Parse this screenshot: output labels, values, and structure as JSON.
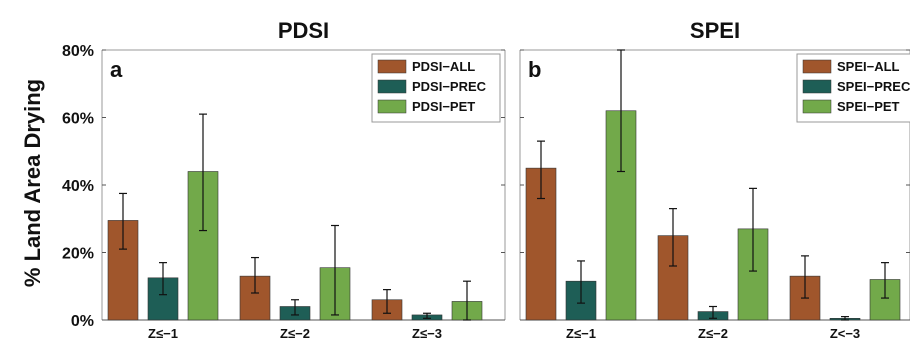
{
  "colors": {
    "all": "#a0562c",
    "prec": "#1e5e56",
    "pet": "#72a94a"
  },
  "chart_data": [
    {
      "type": "bar",
      "panel": "a",
      "title": "PDSI",
      "ylabel": "% Land Area Drying",
      "ylim": [
        0,
        80
      ],
      "yticks": [
        "0%",
        "20%",
        "40%",
        "60%",
        "80%"
      ],
      "categories": [
        "Z≤−1",
        "Z≤−2",
        "Z≤−3"
      ],
      "legend_position": "top-right",
      "series": [
        {
          "name": "PDSI−ALL",
          "color_key": "all",
          "values": [
            29.5,
            13,
            6
          ],
          "err_low": [
            21,
            8,
            2
          ],
          "err_high": [
            37.5,
            18.5,
            9
          ]
        },
        {
          "name": "PDSI−PREC",
          "color_key": "prec",
          "values": [
            12.5,
            4,
            1.5
          ],
          "err_low": [
            7.5,
            1.5,
            0.5
          ],
          "err_high": [
            17,
            6,
            2
          ]
        },
        {
          "name": "PDSI−PET",
          "color_key": "pet",
          "values": [
            44,
            15.5,
            5.5
          ],
          "err_low": [
            26.5,
            1.5,
            0
          ],
          "err_high": [
            61,
            28,
            11.5
          ]
        }
      ]
    },
    {
      "type": "bar",
      "panel": "b",
      "title": "SPEI",
      "ylabel": "",
      "ylim": [
        0,
        80
      ],
      "yticks": [],
      "categories": [
        "Z≤−1",
        "Z≤−2",
        "Z<−3"
      ],
      "legend_position": "top-right",
      "series": [
        {
          "name": "SPEI−ALL",
          "color_key": "all",
          "values": [
            45,
            25,
            13
          ],
          "err_low": [
            36,
            16,
            6.5
          ],
          "err_high": [
            53,
            33,
            19
          ]
        },
        {
          "name": "SPEI−PREC",
          "color_key": "prec",
          "values": [
            11.5,
            2.5,
            0.5
          ],
          "err_low": [
            5,
            0.5,
            0
          ],
          "err_high": [
            17.5,
            4,
            1
          ]
        },
        {
          "name": "SPEI−PET",
          "color_key": "pet",
          "values": [
            62,
            27,
            12
          ],
          "err_low": [
            44,
            14.5,
            6.5
          ],
          "err_high": [
            80,
            39,
            17
          ]
        }
      ]
    }
  ]
}
